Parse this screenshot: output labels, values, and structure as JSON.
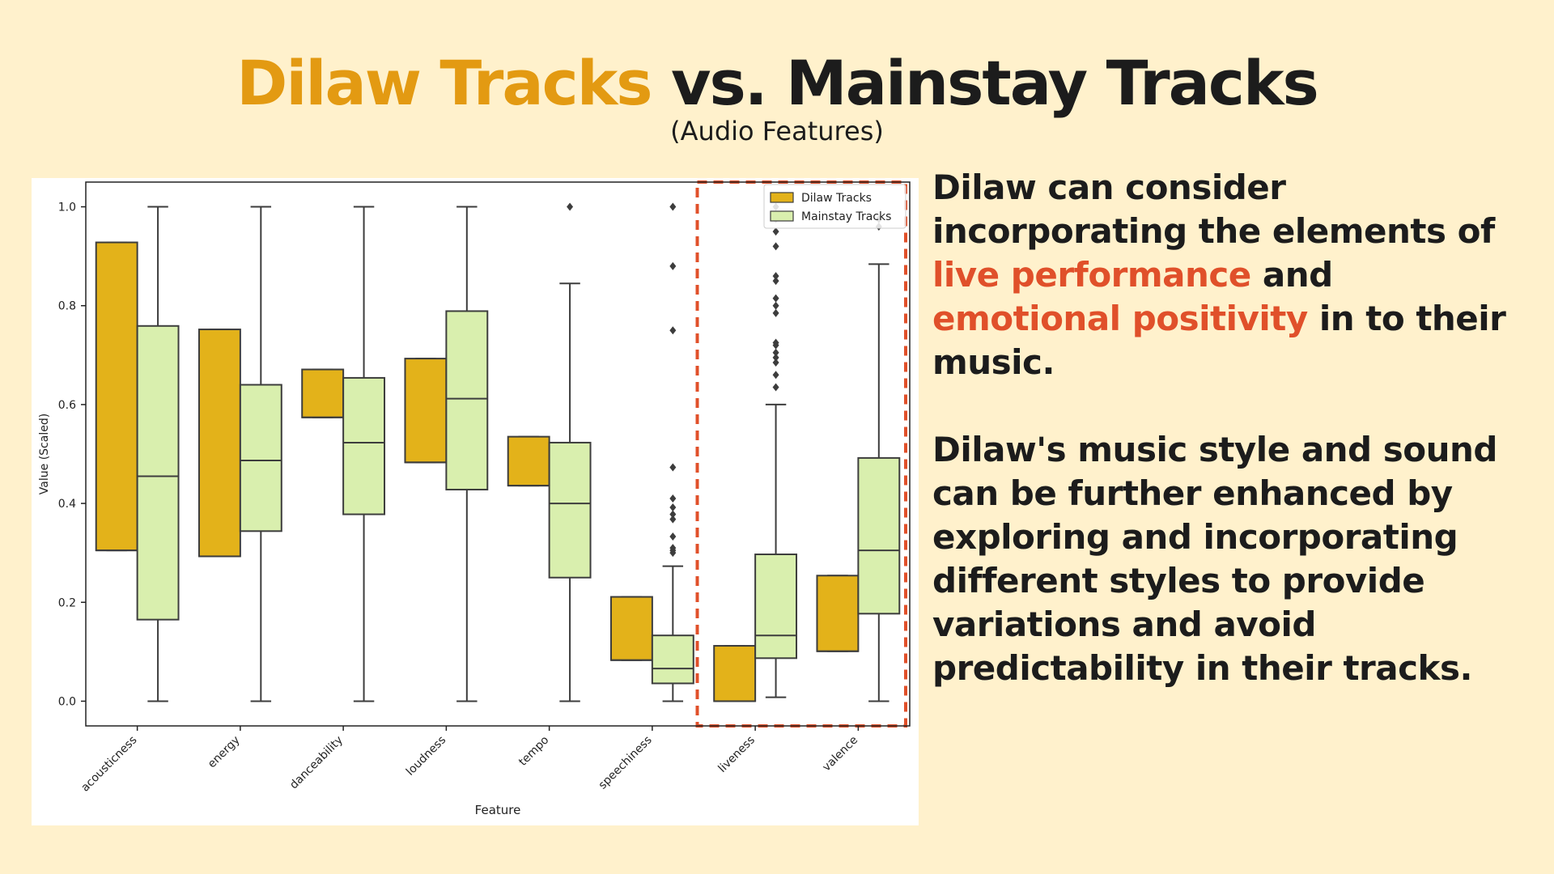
{
  "header": {
    "title_accent": "Dilaw Tracks",
    "title_rest": "vs. Mainstay Tracks",
    "subtitle": "(Audio Features)"
  },
  "colors": {
    "background": "#fff1cc",
    "accent_title": "#e39a12",
    "highlight": "#e0502a",
    "dilaw_box": "#e3b21a",
    "mainstay_box": "#d9efae",
    "dashed_frame": "#e0502a"
  },
  "notes": {
    "p1_a": "Dilaw can consider incorporating the elements of ",
    "p1_hl1": "live performance",
    "p1_b": " and ",
    "p1_hl2": "emotional positivity",
    "p1_c": " in to their music.",
    "p2": "Dilaw's music style and sound can be further enhanced by exploring and incorporating different styles to provide variations and avoid predictability in their tracks."
  },
  "chart_data": {
    "type": "box",
    "title": "",
    "xlabel": "Feature",
    "ylabel": "Value (Scaled)",
    "ylim": [
      -0.05,
      1.05
    ],
    "yticks": [
      0.0,
      0.2,
      0.4,
      0.6,
      0.8,
      1.0
    ],
    "ytick_labels": [
      "0.0",
      "0.2",
      "0.4",
      "0.6",
      "0.8",
      "1.0"
    ],
    "categories": [
      "acousticness",
      "energy",
      "danceability",
      "loudness",
      "tempo",
      "speechiness",
      "liveness",
      "valence"
    ],
    "legend": {
      "position": "upper right",
      "entries": [
        "Dilaw Tracks",
        "Mainstay Tracks"
      ]
    },
    "highlight_categories": [
      "liveness",
      "valence"
    ],
    "series": [
      {
        "name": "Dilaw Tracks",
        "color": "#e3b21a",
        "boxes": [
          {
            "q1": 0.305,
            "median": 0.305,
            "q3": 0.928,
            "whislo": 0.305,
            "whishi": 0.928,
            "fliers": []
          },
          {
            "q1": 0.293,
            "median": 0.293,
            "q3": 0.752,
            "whislo": 0.293,
            "whishi": 0.752,
            "fliers": []
          },
          {
            "q1": 0.574,
            "median": 0.574,
            "q3": 0.671,
            "whislo": 0.574,
            "whishi": 0.671,
            "fliers": []
          },
          {
            "q1": 0.483,
            "median": 0.483,
            "q3": 0.693,
            "whislo": 0.483,
            "whishi": 0.693,
            "fliers": []
          },
          {
            "q1": 0.436,
            "median": 0.436,
            "q3": 0.535,
            "whislo": 0.436,
            "whishi": 0.535,
            "fliers": []
          },
          {
            "q1": 0.083,
            "median": 0.083,
            "q3": 0.211,
            "whislo": 0.083,
            "whishi": 0.211,
            "fliers": []
          },
          {
            "q1": 0.0,
            "median": 0.0,
            "q3": 0.112,
            "whislo": 0.0,
            "whishi": 0.112,
            "fliers": []
          },
          {
            "q1": 0.101,
            "median": 0.101,
            "q3": 0.254,
            "whislo": 0.101,
            "whishi": 0.254,
            "fliers": []
          }
        ]
      },
      {
        "name": "Mainstay Tracks",
        "color": "#d9efae",
        "boxes": [
          {
            "q1": 0.165,
            "median": 0.455,
            "q3": 0.759,
            "whislo": 0.0,
            "whishi": 1.0,
            "fliers": []
          },
          {
            "q1": 0.344,
            "median": 0.487,
            "q3": 0.64,
            "whislo": 0.0,
            "whishi": 1.0,
            "fliers": []
          },
          {
            "q1": 0.378,
            "median": 0.523,
            "q3": 0.654,
            "whislo": 0.0,
            "whishi": 1.0,
            "fliers": []
          },
          {
            "q1": 0.428,
            "median": 0.612,
            "q3": 0.789,
            "whislo": 0.0,
            "whishi": 1.0,
            "fliers": []
          },
          {
            "q1": 0.25,
            "median": 0.4,
            "q3": 0.523,
            "whislo": 0.0,
            "whishi": 0.845,
            "fliers": [
              1.0
            ]
          },
          {
            "q1": 0.036,
            "median": 0.066,
            "q3": 0.133,
            "whislo": 0.0,
            "whishi": 0.273,
            "fliers": [
              0.3,
              0.305,
              0.31,
              0.333,
              0.368,
              0.378,
              0.392,
              0.41,
              0.473,
              0.75,
              0.88,
              1.0
            ]
          },
          {
            "q1": 0.087,
            "median": 0.133,
            "q3": 0.297,
            "whislo": 0.008,
            "whishi": 0.6,
            "fliers": [
              0.635,
              0.66,
              0.685,
              0.695,
              0.705,
              0.72,
              0.725,
              0.785,
              0.8,
              0.815,
              0.85,
              0.86,
              0.92,
              0.95,
              0.975,
              1.0
            ]
          },
          {
            "q1": 0.177,
            "median": 0.305,
            "q3": 0.492,
            "whislo": 0.0,
            "whishi": 0.884,
            "fliers": [
              0.96,
              0.975
            ]
          }
        ]
      }
    ]
  }
}
